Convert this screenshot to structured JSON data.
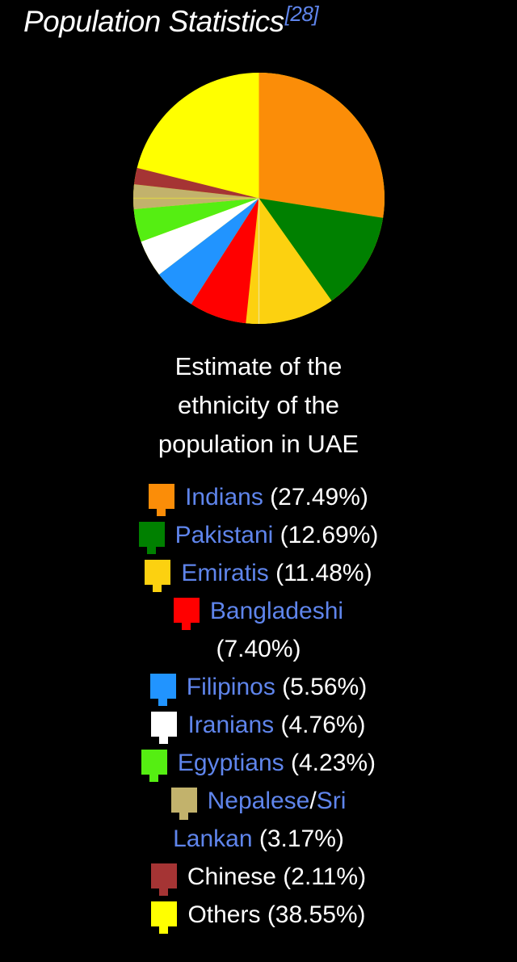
{
  "page": {
    "background": "#000000",
    "text_color": "#FFFFFF",
    "link_color": "#5F85EC"
  },
  "title": {
    "text": "Population Statistics",
    "ref": "[28]"
  },
  "figure": {
    "caption": "Estimate of the ethnicity of the population in UAE"
  },
  "chart_data": {
    "type": "pie",
    "title": "Population Statistics",
    "caption": "Estimate of the ethnicity of the population in UAE",
    "categories": [
      "Indians",
      "Pakistani",
      "Emiratis",
      "Bangladeshi",
      "Filipinos",
      "Iranians",
      "Egyptians",
      "Nepalese/Sri Lankan",
      "Chinese",
      "Others"
    ],
    "values": [
      27.49,
      12.69,
      11.48,
      7.4,
      5.56,
      4.76,
      4.23,
      3.17,
      2.11,
      38.55
    ],
    "colors": [
      "#FB8D08",
      "#008000",
      "#FCD110",
      "#FF0000",
      "#2194FF",
      "#FFFFFF",
      "#55EE12",
      "#C2B26C",
      "#A53434",
      "#FFFF00"
    ],
    "unit": "%",
    "start_angle_deg": 0,
    "direction": "clockwise",
    "others_as_background": true,
    "legend_position": "bottom"
  },
  "legend": {
    "items": [
      {
        "lines": [
          [
            {
              "t": "Indians",
              "link": true
            },
            {
              "t": " (27.49%)",
              "link": false
            }
          ]
        ]
      },
      {
        "lines": [
          [
            {
              "t": "Pakistani",
              "link": true
            },
            {
              "t": " (12.69%)",
              "link": false
            }
          ]
        ]
      },
      {
        "lines": [
          [
            {
              "t": "Emiratis",
              "link": true
            },
            {
              "t": " (11.48%)",
              "link": false
            }
          ]
        ]
      },
      {
        "lines": [
          [
            {
              "t": "Bangladeshi",
              "link": true
            }
          ],
          [
            {
              "t": "(7.40%)",
              "link": false
            }
          ]
        ]
      },
      {
        "lines": [
          [
            {
              "t": "Filipinos",
              "link": true
            },
            {
              "t": " (5.56%)",
              "link": false
            }
          ]
        ]
      },
      {
        "lines": [
          [
            {
              "t": "Iranians",
              "link": true
            },
            {
              "t": " (4.76%)",
              "link": false
            }
          ]
        ]
      },
      {
        "lines": [
          [
            {
              "t": "Egyptians",
              "link": true
            },
            {
              "t": " (4.23%)",
              "link": false
            }
          ]
        ]
      },
      {
        "lines": [
          [
            {
              "t": "Nepalese",
              "link": true
            },
            {
              "t": "/",
              "link": false
            },
            {
              "t": "Sri",
              "link": true
            }
          ],
          [
            {
              "t": "Lankan",
              "link": true
            },
            {
              "t": " (3.17%)",
              "link": false
            }
          ]
        ]
      },
      {
        "lines": [
          [
            {
              "t": "Chinese (2.11%)",
              "link": false
            }
          ]
        ]
      },
      {
        "lines": [
          [
            {
              "t": "Others (38.55%)",
              "link": false
            }
          ]
        ]
      }
    ]
  }
}
